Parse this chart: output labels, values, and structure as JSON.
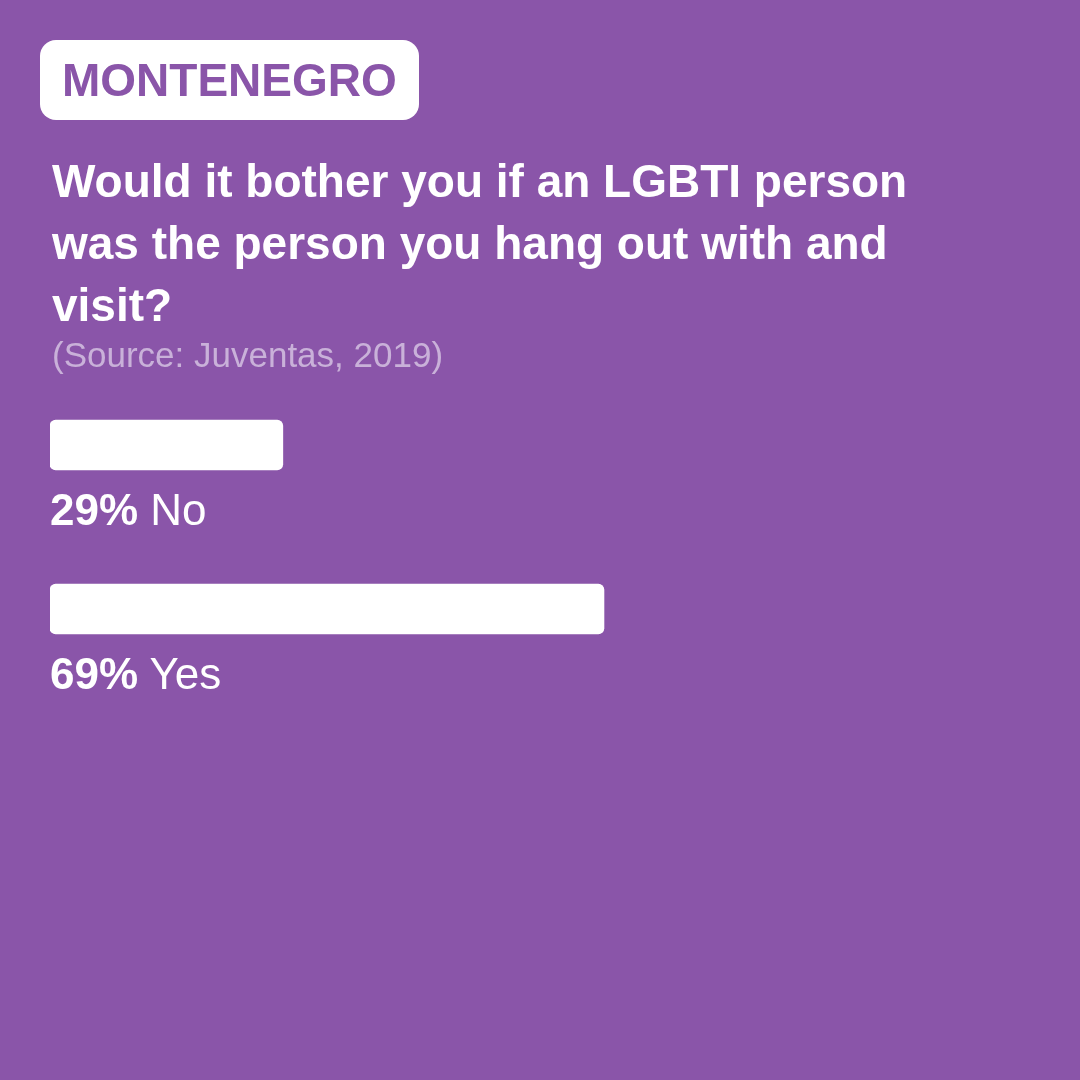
{
  "chart_data": {
    "type": "bar",
    "orientation": "horizontal",
    "subtitle": "MONTENEGRO",
    "title": "Would it bother you if an LGBTI person was the person you hang out with and visit?",
    "annotations": [
      "(Source: Juventas, 2019)"
    ],
    "categories": [
      "No",
      "Yes"
    ],
    "values": [
      29,
      69
    ],
    "color": "#ffffff",
    "value_labels": [
      "29%",
      "69%"
    ]
  }
}
